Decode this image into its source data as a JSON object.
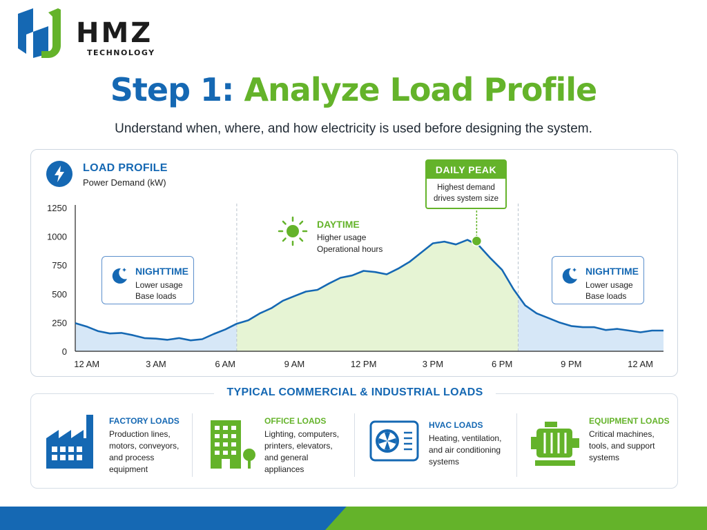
{
  "brand": {
    "name": "HMZ",
    "tagline": "TECHNOLOGY"
  },
  "heading": {
    "step": "Step 1:",
    "topic": "Analyze Load Profile",
    "subtitle": "Understand when, where, and how electricity is used before designing the system."
  },
  "colors": {
    "blue": "#1568b3",
    "green": "#64b32a",
    "night_fill": "#d6e7f7",
    "day_fill": "#e6f4d4"
  },
  "load_profile": {
    "title": "LOAD PROFILE",
    "subtitle": "Power Demand (kW)",
    "icon": "lightning-icon"
  },
  "annotations": {
    "daily_peak": {
      "title": "DAILY PEAK",
      "text": "Highest demand drives system size"
    },
    "daytime": {
      "title": "DAYTIME",
      "lines": [
        "Higher usage",
        "Operational hours"
      ],
      "icon": "sun-icon"
    },
    "nighttime_left": {
      "title": "NIGHTTIME",
      "lines": [
        "Lower usage",
        "Base loads"
      ],
      "icon": "moon-icon"
    },
    "nighttime_right": {
      "title": "NIGHTTIME",
      "lines": [
        "Lower usage",
        "Base loads"
      ],
      "icon": "moon-icon"
    }
  },
  "chart_data": {
    "type": "area",
    "title": "LOAD PROFILE",
    "ylabel": "Power Demand (kW)",
    "xlabel": "",
    "ylim": [
      0,
      1250
    ],
    "xlim": [
      0,
      25.5
    ],
    "yticks": [
      0,
      250,
      500,
      750,
      1000,
      1250
    ],
    "xticks": [
      {
        "x": 0.5,
        "label": "12 AM"
      },
      {
        "x": 3.5,
        "label": "3 AM"
      },
      {
        "x": 6.5,
        "label": "6 AM"
      },
      {
        "x": 9.5,
        "label": "9 AM"
      },
      {
        "x": 12.5,
        "label": "12 PM"
      },
      {
        "x": 15.5,
        "label": "3 PM"
      },
      {
        "x": 18.5,
        "label": "6 PM"
      },
      {
        "x": 21.5,
        "label": "9 PM"
      },
      {
        "x": 24.5,
        "label": "12 AM"
      }
    ],
    "x": [
      0,
      0.5,
      1,
      1.5,
      2,
      2.5,
      3,
      3.5,
      4,
      4.5,
      5,
      5.5,
      6,
      6.5,
      7,
      7.5,
      8,
      8.5,
      9,
      9.5,
      10,
      10.5,
      11,
      11.5,
      12,
      12.5,
      13,
      13.5,
      14,
      14.5,
      15,
      15.5,
      16,
      16.5,
      17,
      17.5,
      18,
      18.5,
      19,
      19.5,
      20,
      20.5,
      21,
      21.5,
      22,
      22.5,
      23,
      23.5,
      24,
      24.5,
      25,
      25.5
    ],
    "y": [
      245,
      215,
      175,
      155,
      160,
      140,
      115,
      110,
      100,
      115,
      95,
      105,
      150,
      190,
      240,
      270,
      330,
      375,
      440,
      480,
      520,
      535,
      590,
      640,
      660,
      700,
      690,
      670,
      720,
      780,
      860,
      940,
      955,
      930,
      970,
      920,
      810,
      710,
      540,
      400,
      330,
      290,
      250,
      220,
      210,
      210,
      185,
      195,
      180,
      165,
      180,
      180
    ],
    "regions": [
      {
        "name": "NIGHTTIME",
        "from": 0,
        "to": 7.0
      },
      {
        "name": "DAYTIME",
        "from": 7.0,
        "to": 19.2
      },
      {
        "name": "NIGHTTIME",
        "from": 19.2,
        "to": 25.5
      }
    ],
    "peak": {
      "x": 17.4,
      "y": 960,
      "label": "DAILY PEAK"
    },
    "grid": false,
    "legend": "none"
  },
  "loads": {
    "section_title": "TYPICAL COMMERCIAL & INDUSTRIAL LOADS",
    "items": [
      {
        "title": "FACTORY LOADS",
        "text": "Production lines, motors, conveyors, and process equipment",
        "icon": "factory-icon",
        "color": "#1568b3"
      },
      {
        "title": "OFFICE LOADS",
        "text": "Lighting, computers, printers, elevators, and general appliances",
        "icon": "office-building-icon",
        "color": "#64b32a"
      },
      {
        "title": "HVAC LOADS",
        "text": "Heating, ventilation, and air conditioning systems",
        "icon": "hvac-unit-icon",
        "color": "#1568b3"
      },
      {
        "title": "EQUIPMENT LOADS",
        "text": "Critical machines, tools, and support systems",
        "icon": "motor-equipment-icon",
        "color": "#64b32a"
      }
    ]
  }
}
